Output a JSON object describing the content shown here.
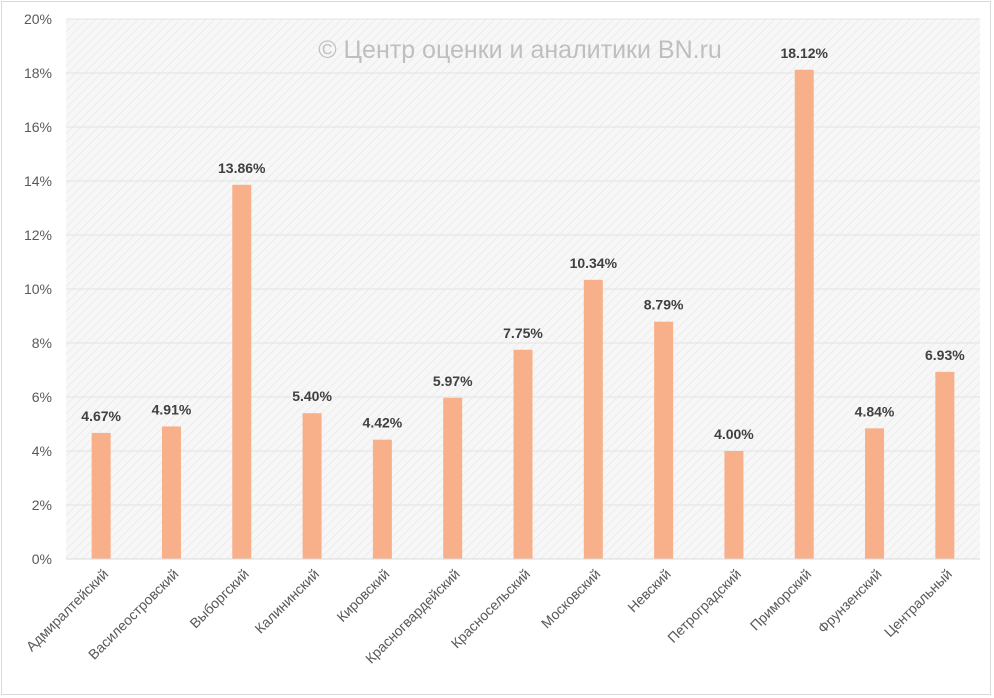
{
  "chart_data": {
    "type": "bar",
    "title": "",
    "xlabel": "",
    "ylabel": "",
    "watermark": "© Центр оценки и аналитики BN.ru",
    "categories": [
      "Адмиралтейский",
      "Василеостровский",
      "Выборгский",
      "Калининский",
      "Кировский",
      "Красногвардейский",
      "Красносельский",
      "Московский",
      "Невский",
      "Петроградский",
      "Приморский",
      "Фрунзенский",
      "Центральный"
    ],
    "values": [
      4.67,
      4.91,
      13.86,
      5.4,
      4.42,
      5.97,
      7.75,
      10.34,
      8.79,
      4.0,
      18.12,
      4.84,
      6.93
    ],
    "data_labels": [
      "4.67%",
      "4.91%",
      "13.86%",
      "5.40%",
      "4.42%",
      "5.97%",
      "7.75%",
      "10.34%",
      "8.79%",
      "4.00%",
      "18.12%",
      "4.84%",
      "6.93%"
    ],
    "y_ticks": [
      "0%",
      "2%",
      "4%",
      "6%",
      "8%",
      "10%",
      "12%",
      "14%",
      "16%",
      "18%",
      "20%"
    ],
    "ylim": [
      0,
      20
    ],
    "grid": true,
    "bar_color": "#f8b08a",
    "grid_color": "#e3e3e3"
  }
}
